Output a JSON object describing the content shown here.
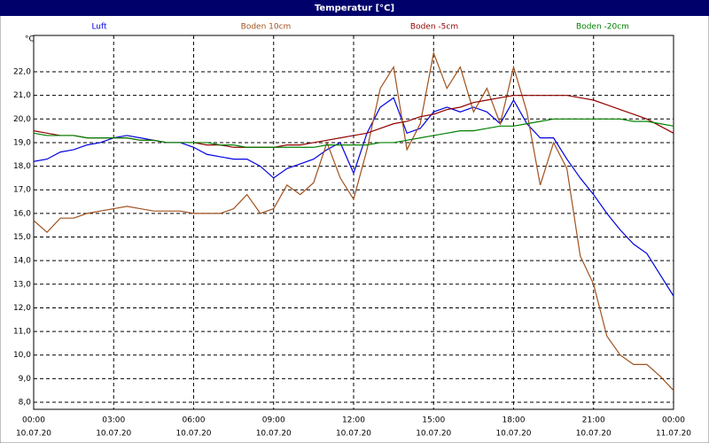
{
  "chart_data": {
    "type": "line",
    "title": "Temperatur [°C]",
    "y_label": "°C",
    "x": [
      0,
      0.5,
      1,
      1.5,
      2,
      2.5,
      3,
      3.5,
      4,
      4.5,
      5,
      5.5,
      6,
      6.5,
      7,
      7.5,
      8,
      8.5,
      9,
      9.5,
      10,
      10.5,
      11,
      11.5,
      12,
      12.5,
      13,
      13.5,
      14,
      14.5,
      15,
      15.5,
      16,
      16.5,
      17,
      17.5,
      18,
      18.5,
      19,
      19.5,
      20,
      20.5,
      21,
      21.5,
      22,
      22.5,
      23,
      23.5,
      24
    ],
    "series": [
      {
        "name": "Luft",
        "color": "#0000e0",
        "values": [
          18.2,
          18.3,
          18.6,
          18.7,
          18.9,
          19.0,
          19.2,
          19.3,
          19.2,
          19.1,
          19.0,
          19.0,
          18.8,
          18.5,
          18.4,
          18.3,
          18.3,
          18.0,
          17.5,
          17.9,
          18.1,
          18.3,
          18.7,
          19.0,
          17.7,
          19.4,
          20.5,
          20.9,
          19.4,
          19.6,
          20.3,
          20.5,
          20.3,
          20.5,
          20.3,
          19.8,
          20.8,
          19.8,
          19.2,
          19.2,
          18.3,
          17.5,
          16.8,
          16.0,
          15.3,
          14.7,
          14.3,
          13.4,
          12.5
        ]
      },
      {
        "name": "Boden 10cm",
        "color": "#a0521e",
        "values": [
          15.7,
          15.2,
          15.8,
          15.8,
          16.0,
          16.1,
          16.2,
          16.3,
          16.2,
          16.1,
          16.1,
          16.1,
          16.0,
          16.0,
          16.0,
          16.2,
          16.8,
          16.0,
          16.2,
          17.2,
          16.8,
          17.3,
          19.0,
          17.5,
          16.6,
          18.7,
          21.3,
          22.2,
          18.7,
          19.8,
          22.8,
          21.3,
          22.2,
          20.3,
          21.3,
          19.8,
          22.2,
          20.3,
          17.2,
          19.0,
          17.9,
          14.2,
          13.0,
          10.8,
          10.0,
          9.6,
          9.6,
          9.1,
          8.5
        ]
      },
      {
        "name": "Boden -5cm",
        "color": "#900000",
        "values": [
          19.5,
          19.4,
          19.3,
          19.3,
          19.2,
          19.2,
          19.2,
          19.2,
          19.1,
          19.1,
          19.0,
          19.0,
          19.0,
          18.9,
          18.9,
          18.8,
          18.8,
          18.8,
          18.8,
          18.9,
          18.9,
          19.0,
          19.1,
          19.2,
          19.3,
          19.4,
          19.6,
          19.8,
          19.9,
          20.1,
          20.2,
          20.4,
          20.5,
          20.7,
          20.8,
          20.9,
          21.0,
          21.0,
          21.0,
          21.0,
          21.0,
          20.9,
          20.8,
          20.6,
          20.4,
          20.2,
          20.0,
          19.7,
          19.4
        ]
      },
      {
        "name": "Boden -20cm",
        "color": "#008000",
        "values": [
          19.4,
          19.3,
          19.3,
          19.3,
          19.2,
          19.2,
          19.2,
          19.2,
          19.1,
          19.1,
          19.0,
          19.0,
          19.0,
          19.0,
          18.9,
          18.9,
          18.8,
          18.8,
          18.8,
          18.8,
          18.8,
          18.8,
          18.9,
          18.9,
          18.9,
          18.9,
          19.0,
          19.0,
          19.1,
          19.2,
          19.3,
          19.4,
          19.5,
          19.5,
          19.6,
          19.7,
          19.7,
          19.8,
          19.9,
          20.0,
          20.0,
          20.0,
          20.0,
          20.0,
          20.0,
          19.9,
          19.9,
          19.8,
          19.7
        ]
      }
    ],
    "xlim": [
      0,
      24
    ],
    "xticks": [
      {
        "value": 0,
        "label": "00:00",
        "date": "10.07.20"
      },
      {
        "value": 3,
        "label": "03:00",
        "date": "10.07.20"
      },
      {
        "value": 6,
        "label": "06:00",
        "date": "10.07.20"
      },
      {
        "value": 9,
        "label": "09:00",
        "date": "10.07.20"
      },
      {
        "value": 12,
        "label": "12:00",
        "date": "10.07.20"
      },
      {
        "value": 15,
        "label": "15:00",
        "date": "10.07.20"
      },
      {
        "value": 18,
        "label": "18:00",
        "date": "10.07.20"
      },
      {
        "value": 21,
        "label": "21:00",
        "date": "10.07.20"
      },
      {
        "value": 24,
        "label": "00:00",
        "date": "11.07.20"
      }
    ],
    "ylim": [
      7.7,
      23.54
    ],
    "yticks": [
      {
        "value": 8,
        "label": "8,0"
      },
      {
        "value": 9,
        "label": "9,0"
      },
      {
        "value": 10,
        "label": "10,0"
      },
      {
        "value": 11,
        "label": "11,0"
      },
      {
        "value": 12,
        "label": "12,0"
      },
      {
        "value": 13,
        "label": "13,0"
      },
      {
        "value": 14,
        "label": "14,0"
      },
      {
        "value": 15,
        "label": "15,0"
      },
      {
        "value": 16,
        "label": "16,0"
      },
      {
        "value": 17,
        "label": "17,0"
      },
      {
        "value": 18,
        "label": "18,0"
      },
      {
        "value": 19,
        "label": "19,0"
      },
      {
        "value": 20,
        "label": "20,0"
      },
      {
        "value": 21,
        "label": "21,0"
      },
      {
        "value": 22,
        "label": "22,0"
      }
    ],
    "grid": true
  }
}
